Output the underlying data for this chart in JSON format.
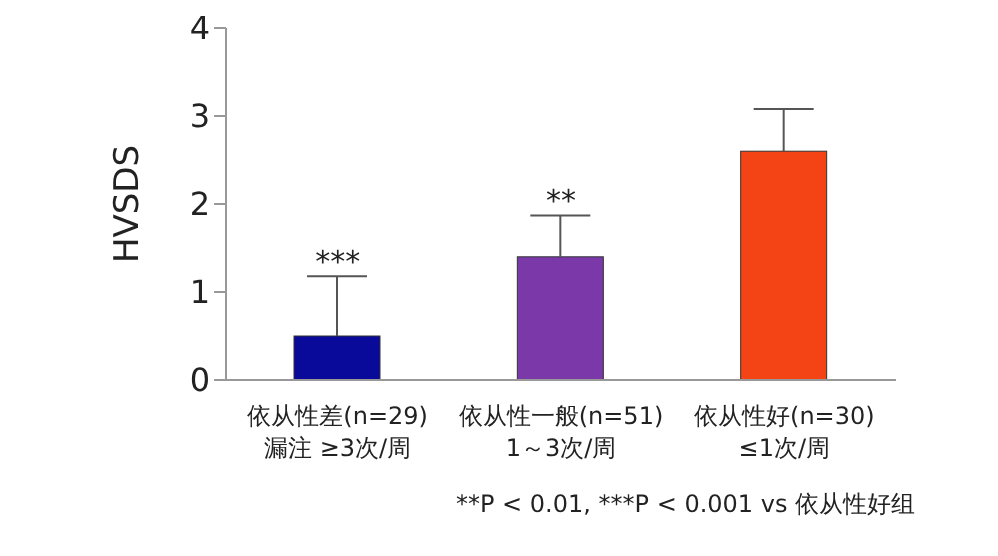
{
  "chart_data": {
    "type": "bar",
    "ylabel": "HVSDS",
    "categories": [
      "依从性差(n=29)\n漏注 ≥3次/周",
      "依从性一般(n=51)\n1～3次/周",
      "依从性好(n=30)\n≤1次/周"
    ],
    "values": [
      0.5,
      1.4,
      2.6
    ],
    "colors": [
      "#0a0a9a",
      "#7a38a8",
      "#f44314"
    ],
    "errors": [
      [
        0.5,
        1.18
      ],
      [
        1.4,
        1.87
      ],
      [
        2.6,
        3.08
      ]
    ],
    "ylim": [
      0,
      4
    ],
    "yticks": [
      0,
      1,
      2,
      3,
      4
    ],
    "grid": false,
    "legend": false,
    "annotations": [
      {
        "text": "***",
        "x": "依从性差(n=29)\n漏注 ≥3次/周",
        "y": 1.18
      },
      {
        "text": "**",
        "x": "依从性一般(n=51)\n1～3次/周",
        "y": 1.87
      },
      "**P < 0.01, ***P < 0.001 vs 依从性好组"
    ]
  }
}
